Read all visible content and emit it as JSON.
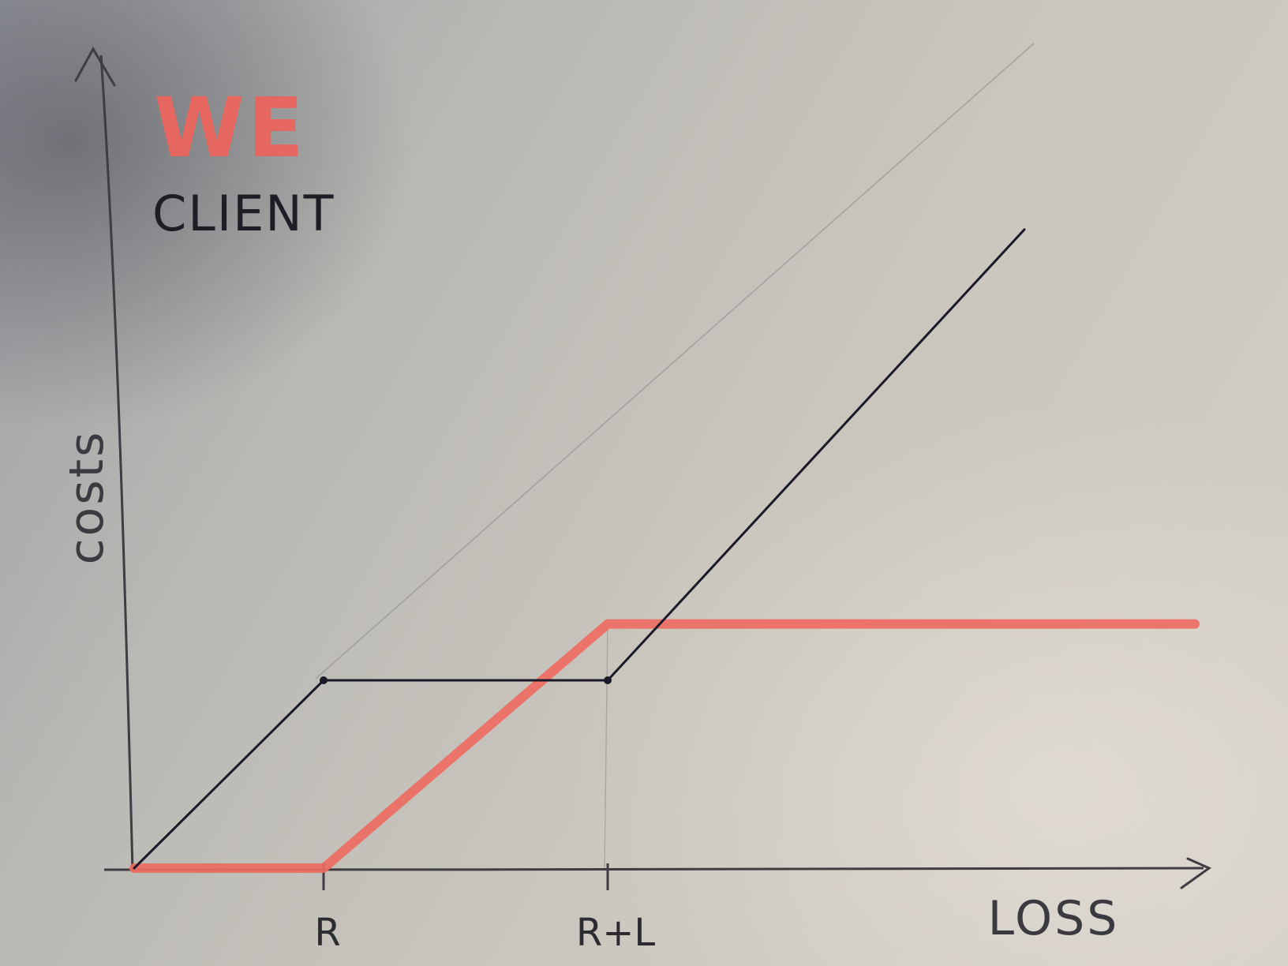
{
  "chart_data": {
    "type": "line",
    "title": "",
    "xlabel": "LOSS",
    "ylabel": "costs",
    "x_ticks": [
      "R",
      "R+L"
    ],
    "xlim": [
      0,
      5.6
    ],
    "ylim": [
      0,
      4.1
    ],
    "grid": false,
    "legend": {
      "placement": "top-left",
      "entries": [
        "WE",
        "CLIENT"
      ]
    },
    "series": [
      {
        "name": "WE",
        "color": "#ee6a60",
        "x": [
          0,
          1,
          2.5,
          5.6
        ],
        "y": [
          0,
          0,
          1.3,
          1.3
        ]
      },
      {
        "name": "CLIENT",
        "color": "#1a1a2a",
        "x": [
          0,
          1,
          2.5,
          4.7
        ],
        "y": [
          0,
          1,
          1,
          3.4
        ]
      }
    ]
  }
}
